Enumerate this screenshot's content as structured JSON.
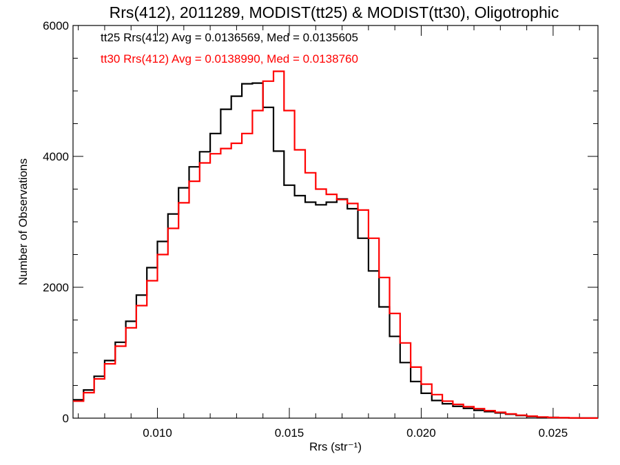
{
  "chart_data": {
    "type": "line",
    "title": "Rrs(412), 2011289, MODIST(tt25) & MODIST(tt30), Oligotrophic",
    "xlabel": "Rrs (str⁻¹)",
    "ylabel": "Number of Observations",
    "xlim": [
      0.0068,
      0.0267
    ],
    "ylim": [
      0,
      6000
    ],
    "x_ticks": [
      0.01,
      0.015,
      0.02,
      0.025
    ],
    "x_tick_labels": [
      "0.010",
      "0.015",
      "0.020",
      "0.025"
    ],
    "y_ticks": [
      0,
      2000,
      4000,
      6000
    ],
    "y_tick_labels": [
      "0",
      "2000",
      "4000",
      "6000"
    ],
    "grid": false,
    "legend_position": "top-left",
    "series": [
      {
        "name": "tt25",
        "legend_text": "tt25 Rrs(412) Avg = 0.0136569, Med = 0.0135605",
        "color": "#000000",
        "x": [
          0.0068,
          0.0072,
          0.0076,
          0.008,
          0.0084,
          0.0088,
          0.0092,
          0.0096,
          0.01,
          0.0104,
          0.0108,
          0.0112,
          0.0116,
          0.012,
          0.0124,
          0.0128,
          0.0132,
          0.0136,
          0.014,
          0.0144,
          0.0148,
          0.0152,
          0.0156,
          0.016,
          0.0164,
          0.0168,
          0.0172,
          0.0176,
          0.018,
          0.0184,
          0.0188,
          0.0192,
          0.0196,
          0.02,
          0.0204,
          0.0208,
          0.0212,
          0.0216,
          0.022,
          0.0224,
          0.0228,
          0.0232,
          0.0236,
          0.024,
          0.0244,
          0.0248,
          0.0252,
          0.0256,
          0.026,
          0.0264,
          0.0267
        ],
        "y": [
          280,
          430,
          640,
          880,
          1160,
          1480,
          1880,
          2300,
          2700,
          3120,
          3520,
          3840,
          4070,
          4350,
          4720,
          4920,
          5110,
          5120,
          4750,
          4080,
          3560,
          3400,
          3300,
          3260,
          3300,
          3350,
          3200,
          2750,
          2250,
          1700,
          1250,
          850,
          560,
          380,
          270,
          220,
          180,
          150,
          120,
          100,
          80,
          60,
          40,
          25,
          15,
          10,
          5,
          3,
          2,
          1,
          1
        ]
      },
      {
        "name": "tt30",
        "legend_text": "tt30 Rrs(412) Avg = 0.0138990, Med = 0.0138760",
        "color": "#ff0000",
        "x": [
          0.0068,
          0.0072,
          0.0076,
          0.008,
          0.0084,
          0.0088,
          0.0092,
          0.0096,
          0.01,
          0.0104,
          0.0108,
          0.0112,
          0.0116,
          0.012,
          0.0124,
          0.0128,
          0.0132,
          0.0136,
          0.014,
          0.0144,
          0.0148,
          0.0152,
          0.0156,
          0.016,
          0.0164,
          0.0168,
          0.0172,
          0.0176,
          0.018,
          0.0184,
          0.0188,
          0.0192,
          0.0196,
          0.02,
          0.0204,
          0.0208,
          0.0212,
          0.0216,
          0.022,
          0.0224,
          0.0228,
          0.0232,
          0.0236,
          0.024,
          0.0244,
          0.0248,
          0.0252,
          0.0256,
          0.026,
          0.0264,
          0.0267
        ],
        "y": [
          260,
          390,
          600,
          830,
          1100,
          1380,
          1720,
          2100,
          2500,
          2900,
          3290,
          3620,
          3900,
          4040,
          4120,
          4200,
          4350,
          4700,
          5150,
          5300,
          4700,
          4100,
          3750,
          3500,
          3420,
          3340,
          3280,
          3180,
          2750,
          2150,
          1600,
          1150,
          780,
          520,
          360,
          260,
          210,
          175,
          145,
          115,
          90,
          65,
          45,
          30,
          18,
          11,
          6,
          4,
          2,
          1,
          1
        ]
      }
    ]
  }
}
